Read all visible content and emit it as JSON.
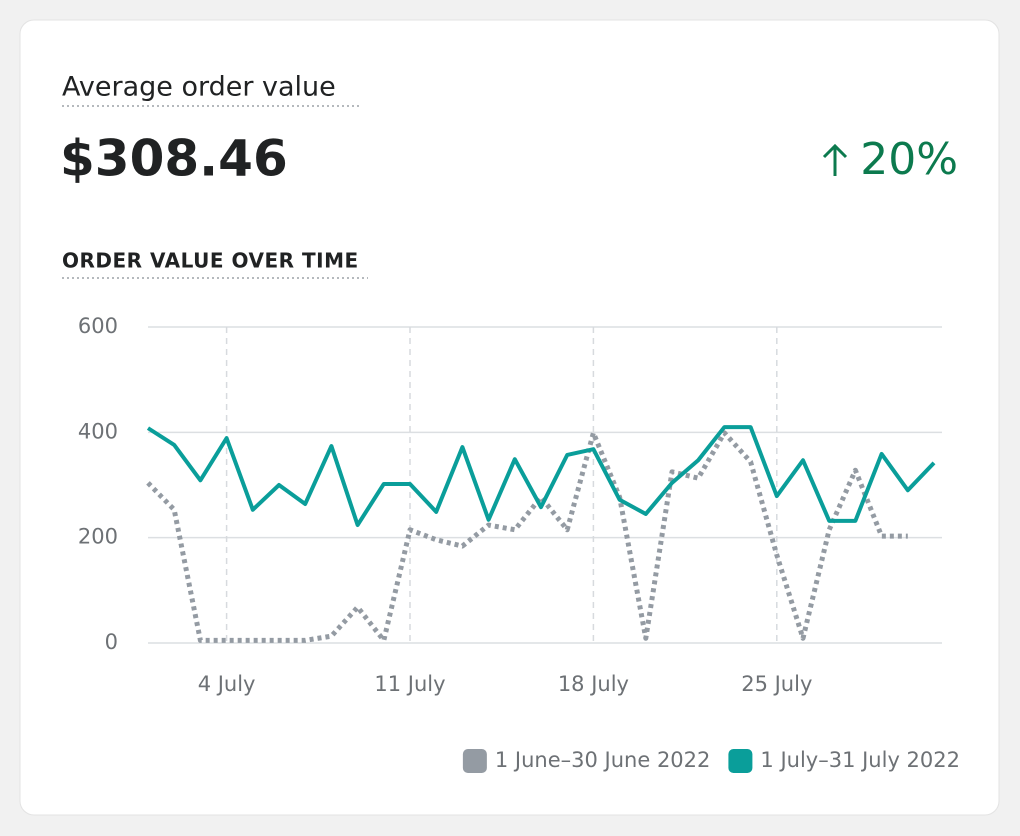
{
  "card": {
    "title": "Average order value",
    "value": "$308.46",
    "change": "20%"
  },
  "chart_data": {
    "type": "line",
    "title": "ORDER VALUE OVER TIME",
    "categories": [
      null,
      null,
      null,
      "4 July",
      null,
      null,
      null,
      null,
      null,
      null,
      "11 July",
      null,
      null,
      null,
      null,
      null,
      null,
      "18 July",
      null,
      null,
      null,
      null,
      null,
      null,
      "25 July",
      null,
      null,
      null,
      null,
      null,
      null
    ],
    "series": [
      {
        "name": "1 June–30 June 2022",
        "color": "#949ba3",
        "style": "dotted",
        "values": [
          304,
          253,
          5,
          5,
          5,
          5,
          5,
          13,
          68,
          5,
          215,
          196,
          184,
          224,
          215,
          277,
          215,
          399,
          277,
          9,
          325,
          313,
          399,
          344,
          167,
          9,
          215,
          328,
          203,
          203,
          null
        ]
      },
      {
        "name": "1 July–31 July 2022",
        "color": "#0a9e9a",
        "style": "solid",
        "values": [
          408,
          376,
          309,
          389,
          253,
          300,
          264,
          374,
          224,
          302,
          302,
          249,
          372,
          234,
          349,
          258,
          357,
          368,
          272,
          245,
          304,
          347,
          410,
          410,
          279,
          347,
          232,
          232,
          359,
          290,
          342
        ]
      }
    ],
    "ylim": [
      0,
      600
    ],
    "yticks": [
      0,
      200,
      400,
      600
    ],
    "grid": true,
    "legend": "bottom-right"
  }
}
